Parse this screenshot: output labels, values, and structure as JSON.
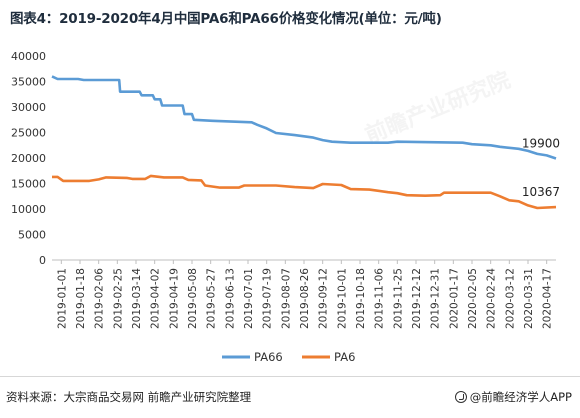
{
  "title": "图表4：2019-2020年4月中国PA6和PA66价格变化情况(单位：元/吨)",
  "source": "资料来源：大宗商品交易网 前瞻产业研究院整理",
  "brand": "@前瞻经济学人APP",
  "watermark": "前瞻产业研究院",
  "chart_data": {
    "type": "line",
    "title": "图表4：2019-2020年4月中国PA6和PA66价格变化情况(单位：元/吨)",
    "xlabel": "",
    "ylabel": "",
    "ylim": [
      0,
      40000
    ],
    "yticks": [
      0,
      5000,
      10000,
      15000,
      20000,
      25000,
      30000,
      35000,
      40000
    ],
    "grid": false,
    "legend": "bottom",
    "xticks": [
      "2019-01-01",
      "2019-01-18",
      "2019-02-06",
      "2019-02-25",
      "2019-03-14",
      "2019-04-02",
      "2019-04-19",
      "2019-05-08",
      "2019-05-27",
      "2019-06-13",
      "2019-07-01",
      "2019-07-19",
      "2019-08-07",
      "2019-08-26",
      "2019-09-12",
      "2019-10-01",
      "2019-10-18",
      "2019-11-06",
      "2019-11-25",
      "2019-12-12",
      "2019-12-31",
      "2020-01-17",
      "2020-02-05",
      "2020-02-24",
      "2020-03-12",
      "2020-03-31",
      "2020-04-17"
    ],
    "series": [
      {
        "name": "PA66",
        "color": "#5b9bd5",
        "end_label": "19900",
        "points": [
          [
            0,
            36000
          ],
          [
            0.3,
            35500
          ],
          [
            1.4,
            35500
          ],
          [
            1.7,
            35300
          ],
          [
            3.6,
            35300
          ],
          [
            3.65,
            33000
          ],
          [
            4.7,
            33000
          ],
          [
            4.8,
            32300
          ],
          [
            5.4,
            32300
          ],
          [
            5.5,
            31500
          ],
          [
            5.8,
            31500
          ],
          [
            5.9,
            30300
          ],
          [
            7.0,
            30300
          ],
          [
            7.1,
            28600
          ],
          [
            7.5,
            28600
          ],
          [
            7.6,
            27500
          ],
          [
            8.6,
            27300
          ],
          [
            10.7,
            27000
          ],
          [
            11.0,
            26500
          ],
          [
            11.5,
            25800
          ],
          [
            12.0,
            24900
          ],
          [
            13.0,
            24500
          ],
          [
            14.0,
            24000
          ],
          [
            14.5,
            23500
          ],
          [
            15.0,
            23200
          ],
          [
            16.0,
            23000
          ],
          [
            17.0,
            23000
          ],
          [
            18.0,
            23000
          ],
          [
            18.5,
            23200
          ],
          [
            22.0,
            23000
          ],
          [
            22.5,
            22700
          ],
          [
            23.5,
            22500
          ],
          [
            24.0,
            22200
          ],
          [
            25.0,
            21800
          ],
          [
            25.5,
            21400
          ],
          [
            26.0,
            20800
          ],
          [
            26.5,
            20500
          ],
          [
            27.0,
            19900
          ]
        ]
      },
      {
        "name": "PA6",
        "color": "#ed7d31",
        "end_label": "10367",
        "points": [
          [
            0,
            16300
          ],
          [
            0.3,
            16300
          ],
          [
            0.6,
            15500
          ],
          [
            2.0,
            15500
          ],
          [
            2.5,
            15800
          ],
          [
            2.9,
            16200
          ],
          [
            4.0,
            16100
          ],
          [
            4.3,
            15900
          ],
          [
            5.0,
            15900
          ],
          [
            5.3,
            16500
          ],
          [
            6.0,
            16200
          ],
          [
            7.0,
            16200
          ],
          [
            7.3,
            15700
          ],
          [
            8.0,
            15600
          ],
          [
            8.2,
            14600
          ],
          [
            9.0,
            14200
          ],
          [
            10.0,
            14200
          ],
          [
            10.3,
            14600
          ],
          [
            12.0,
            14600
          ],
          [
            13.0,
            14300
          ],
          [
            14.0,
            14100
          ],
          [
            14.5,
            14900
          ],
          [
            15.5,
            14700
          ],
          [
            16.0,
            13900
          ],
          [
            17.0,
            13800
          ],
          [
            18.0,
            13300
          ],
          [
            18.5,
            13100
          ],
          [
            19.0,
            12700
          ],
          [
            20.0,
            12600
          ],
          [
            20.8,
            12700
          ],
          [
            21.0,
            13200
          ],
          [
            23.5,
            13200
          ],
          [
            24.0,
            12500
          ],
          [
            24.5,
            11700
          ],
          [
            25.0,
            11500
          ],
          [
            25.5,
            10700
          ],
          [
            26.0,
            10200
          ],
          [
            27.0,
            10367
          ]
        ]
      }
    ]
  }
}
